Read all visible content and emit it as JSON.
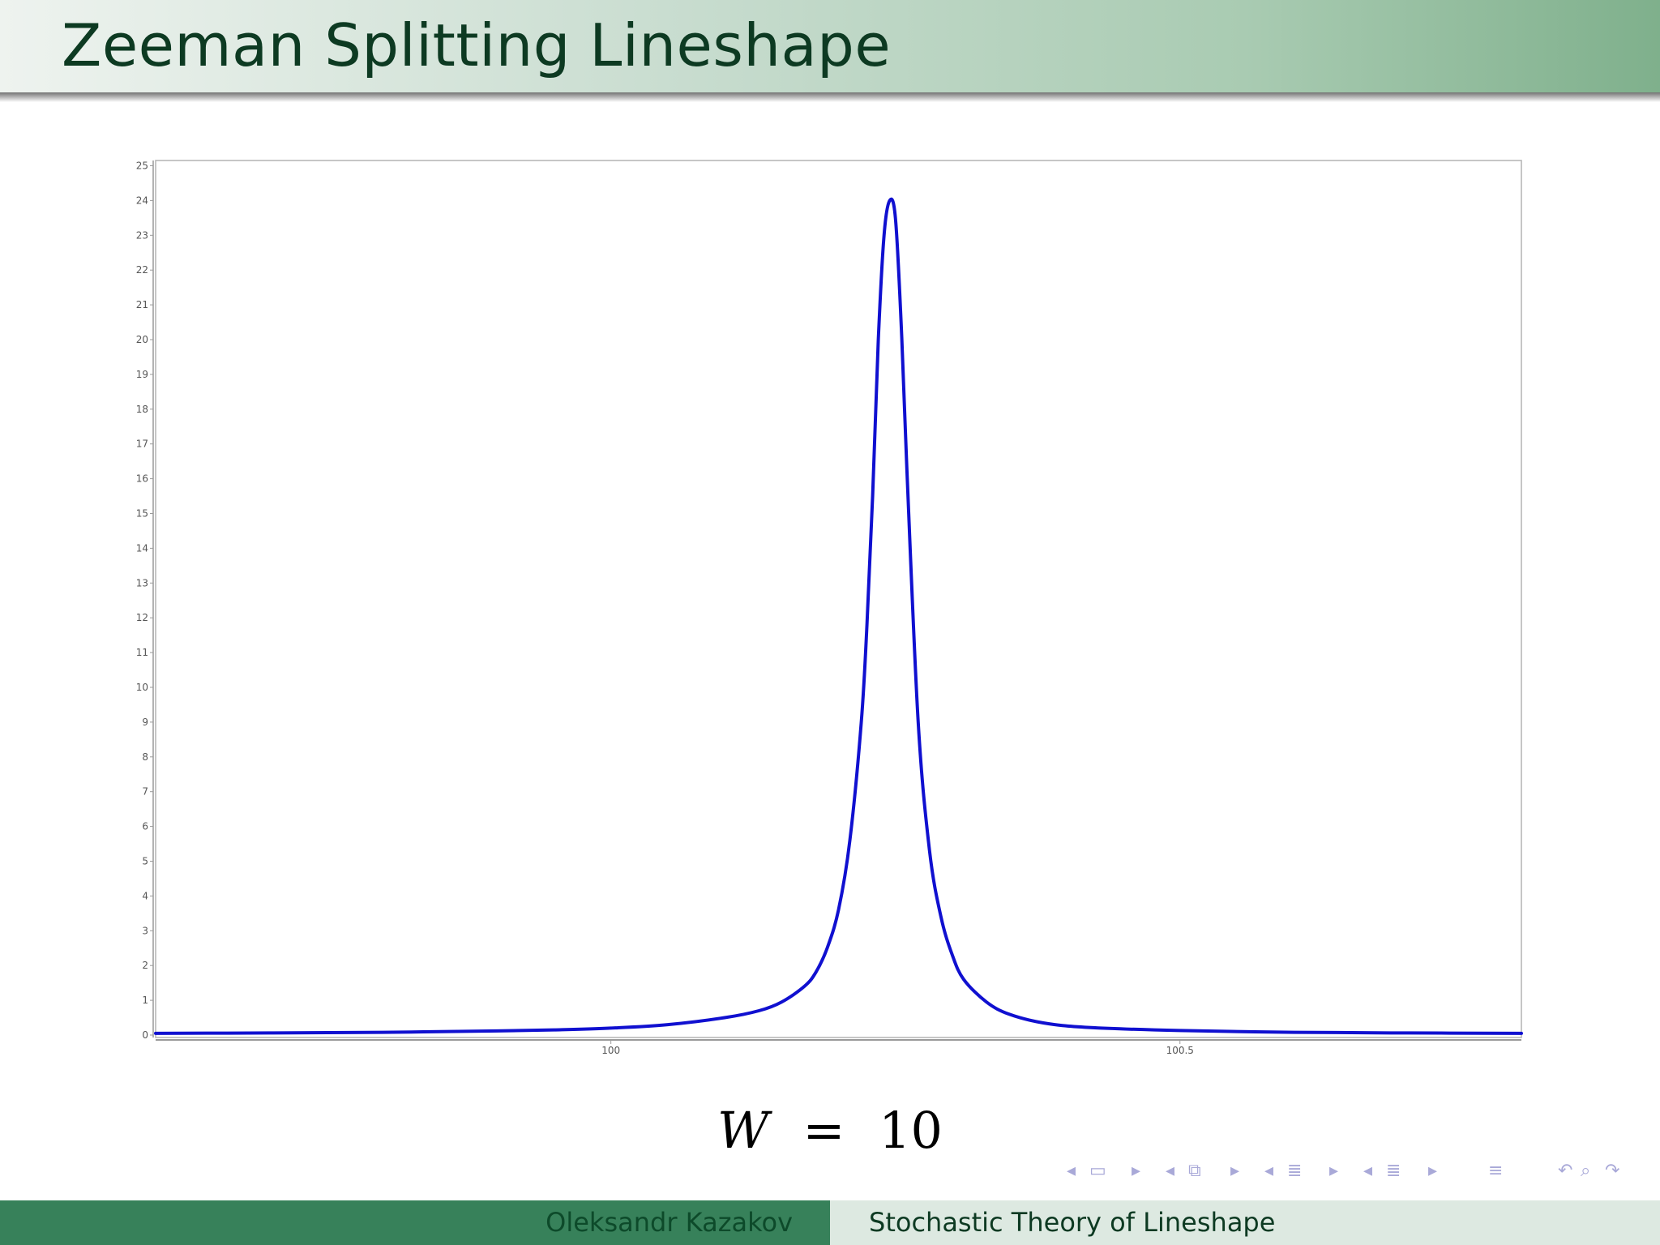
{
  "slide": {
    "title": "Zeeman Splitting Lineshape",
    "equation": {
      "lhs": "W",
      "op": "=",
      "rhs": "10"
    },
    "footer": {
      "author": "Oleksandr Kazakov",
      "title": "Stochastic Theory of Lineshape"
    }
  },
  "navigation": {
    "icons": [
      "nav-first-left-arrow-icon",
      "frame-icon",
      "nav-right-arrow-icon",
      "nav-left-arrow-icon",
      "slides-icon",
      "nav-right-arrow-icon",
      "nav-left-arrow-icon",
      "subsection-icon",
      "nav-right-arrow-icon",
      "nav-left-arrow-icon",
      "section-icon",
      "nav-right-arrow-icon",
      "outline-icon",
      "undo-icon",
      "search-icon",
      "redo-icon"
    ],
    "color": "#a9a9d8"
  },
  "chart_data": {
    "type": "line",
    "title": "",
    "xlabel": "",
    "ylabel": "",
    "xlim": [
      99.6,
      100.8
    ],
    "ylim": [
      0,
      25
    ],
    "xticks": [
      "100",
      "100.5"
    ],
    "xtick_values": [
      100,
      100.5
    ],
    "yticks": [
      "0",
      "1",
      "2",
      "3",
      "4",
      "5",
      "6",
      "7",
      "8",
      "9",
      "10",
      "11",
      "12",
      "13",
      "14",
      "15",
      "16",
      "17",
      "18",
      "19",
      "20",
      "21",
      "22",
      "23",
      "24",
      "25"
    ],
    "grid": false,
    "line_color": "#1010d0",
    "series": [
      {
        "x": [
          99.6,
          99.7,
          99.8,
          99.9,
          99.95,
          100.0,
          100.05,
          100.1,
          100.13,
          100.15,
          100.17,
          100.18,
          100.19,
          100.2,
          100.21,
          100.22,
          100.225,
          100.23,
          100.235,
          100.24,
          100.245,
          100.25,
          100.255,
          100.26,
          100.27,
          100.28,
          100.29,
          100.3,
          100.31,
          100.33,
          100.35,
          100.38,
          100.42,
          100.5,
          100.6,
          100.7,
          100.8
        ],
        "y": [
          0.05,
          0.06,
          0.08,
          0.12,
          0.15,
          0.2,
          0.3,
          0.5,
          0.7,
          0.95,
          1.4,
          1.8,
          2.5,
          3.6,
          5.6,
          9.0,
          11.8,
          15.5,
          20.0,
          23.0,
          24.0,
          23.5,
          20.5,
          16.3,
          9.0,
          5.3,
          3.4,
          2.3,
          1.6,
          0.95,
          0.6,
          0.35,
          0.22,
          0.13,
          0.08,
          0.06,
          0.05
        ]
      }
    ]
  }
}
